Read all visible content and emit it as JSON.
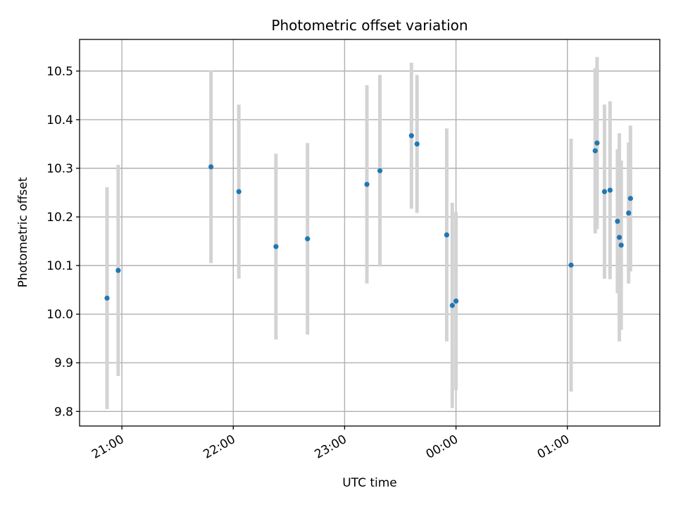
{
  "chart_data": {
    "type": "scatter",
    "title": "Photometric offset variation",
    "xlabel": "UTC time",
    "ylabel": "Photometric offset",
    "x_tick_labels": [
      "21:00",
      "22:00",
      "23:00",
      "00:00",
      "01:00"
    ],
    "x_ticks_hours": [
      21,
      22,
      23,
      24,
      25
    ],
    "x_range_hours": [
      20.62,
      25.83
    ],
    "y_ticks": [
      9.8,
      9.9,
      10.0,
      10.1,
      10.2,
      10.3,
      10.4,
      10.5
    ],
    "y_tick_labels": [
      "9.8",
      "9.9",
      "10.0",
      "10.1",
      "10.2",
      "10.3",
      "10.4",
      "10.5"
    ],
    "ylim": [
      9.77,
      10.565
    ],
    "grid": true,
    "colors": {
      "point": "#1f77b4",
      "errorbar": "#d3d3d3",
      "grid": "#b0b0b0"
    },
    "series": [
      {
        "points": [
          {
            "time": "20:52",
            "y": 10.033,
            "yerr": 0.228
          },
          {
            "time": "20:58",
            "y": 10.09,
            "yerr": 0.217
          },
          {
            "time": "21:48",
            "y": 10.303,
            "yerr": 0.198
          },
          {
            "time": "22:03",
            "y": 10.252,
            "yerr": 0.179
          },
          {
            "time": "22:23",
            "y": 10.139,
            "yerr": 0.191
          },
          {
            "time": "22:40",
            "y": 10.155,
            "yerr": 0.197
          },
          {
            "time": "23:12",
            "y": 10.267,
            "yerr": 0.204
          },
          {
            "time": "23:19",
            "y": 10.295,
            "yerr": 0.197
          },
          {
            "time": "23:36",
            "y": 10.367,
            "yerr": 0.15
          },
          {
            "time": "23:39",
            "y": 10.35,
            "yerr": 0.142
          },
          {
            "time": "23:55",
            "y": 10.163,
            "yerr": 0.219
          },
          {
            "time": "23:58",
            "y": 10.018,
            "yerr": 0.211
          },
          {
            "time": "00:00",
            "y": 10.027,
            "yerr": 0.183
          },
          {
            "time": "01:02",
            "y": 10.101,
            "yerr": 0.26
          },
          {
            "time": "01:15",
            "y": 10.336,
            "yerr": 0.17
          },
          {
            "time": "01:16",
            "y": 10.352,
            "yerr": 0.177
          },
          {
            "time": "01:20",
            "y": 10.252,
            "yerr": 0.179
          },
          {
            "time": "01:23",
            "y": 10.255,
            "yerr": 0.183
          },
          {
            "time": "01:27",
            "y": 10.191,
            "yerr": 0.148
          },
          {
            "time": "01:28",
            "y": 10.158,
            "yerr": 0.214
          },
          {
            "time": "01:29",
            "y": 10.142,
            "yerr": 0.174
          },
          {
            "time": "01:33",
            "y": 10.208,
            "yerr": 0.145
          },
          {
            "time": "01:34",
            "y": 10.238,
            "yerr": 0.15
          }
        ]
      }
    ]
  }
}
